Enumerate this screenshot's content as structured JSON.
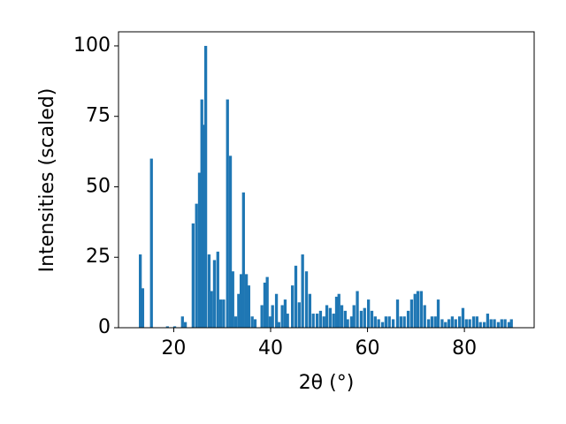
{
  "chart_data": {
    "type": "bar",
    "xlabel": "2θ (°)",
    "ylabel": "Intensities (scaled)",
    "x": [
      13.1,
      13.6,
      15.4,
      18.7,
      20.2,
      21.8,
      22.4,
      24.0,
      24.7,
      25.3,
      25.8,
      26.2,
      26.6,
      27.3,
      27.8,
      28.4,
      29.1,
      29.7,
      30.3,
      31.1,
      31.7,
      32.2,
      32.8,
      33.4,
      33.9,
      34.4,
      35.0,
      35.5,
      36.2,
      36.8,
      38.2,
      38.8,
      39.3,
      39.9,
      40.4,
      41.2,
      41.7,
      42.4,
      43.0,
      43.5,
      44.5,
      45.2,
      45.9,
      46.6,
      47.4,
      48.1,
      48.8,
      49.6,
      50.3,
      51.0,
      51.6,
      52.3,
      53.0,
      53.6,
      54.1,
      54.7,
      55.4,
      55.9,
      56.7,
      57.2,
      57.9,
      58.7,
      59.4,
      60.2,
      60.9,
      61.6,
      62.3,
      63.1,
      63.8,
      64.5,
      65.3,
      66.2,
      66.9,
      67.6,
      68.4,
      69.1,
      69.8,
      70.4,
      71.1,
      71.8,
      72.6,
      73.3,
      74.0,
      74.6,
      75.4,
      76.1,
      76.8,
      77.5,
      78.2,
      79.0,
      79.7,
      80.4,
      81.1,
      81.9,
      82.6,
      83.3,
      84.1,
      84.8,
      85.5,
      86.2,
      87.0,
      87.7,
      88.4,
      89.2,
      89.7
    ],
    "values": [
      26,
      14,
      60,
      0.5,
      0.5,
      4,
      2,
      37,
      44,
      55,
      81,
      72,
      100,
      26,
      13,
      24,
      27,
      10,
      10,
      81,
      61,
      20,
      4,
      12,
      19,
      48,
      19,
      15,
      4,
      3,
      8,
      16,
      18,
      4,
      8,
      12,
      2,
      8,
      10,
      5,
      15,
      22,
      9,
      26,
      20,
      12,
      5,
      5,
      6,
      4,
      8,
      7,
      5,
      11,
      12,
      8,
      6,
      3,
      4,
      8,
      13,
      6,
      7,
      10,
      6,
      4,
      3,
      2,
      4,
      4,
      3,
      10,
      4,
      4,
      6,
      10,
      12,
      13,
      13,
      8,
      3,
      4,
      4,
      10,
      3,
      2,
      3,
      4,
      3,
      4,
      7,
      3,
      3,
      4,
      4,
      2,
      2,
      5,
      3,
      3,
      2,
      3,
      3,
      2,
      3
    ],
    "color": "#1f77b4",
    "xlim": [
      8.6,
      94.4
    ],
    "xticks": [
      20,
      40,
      60,
      80
    ],
    "ylim": [
      0,
      105
    ],
    "yticks": [
      0,
      25,
      50,
      75,
      100
    ]
  }
}
